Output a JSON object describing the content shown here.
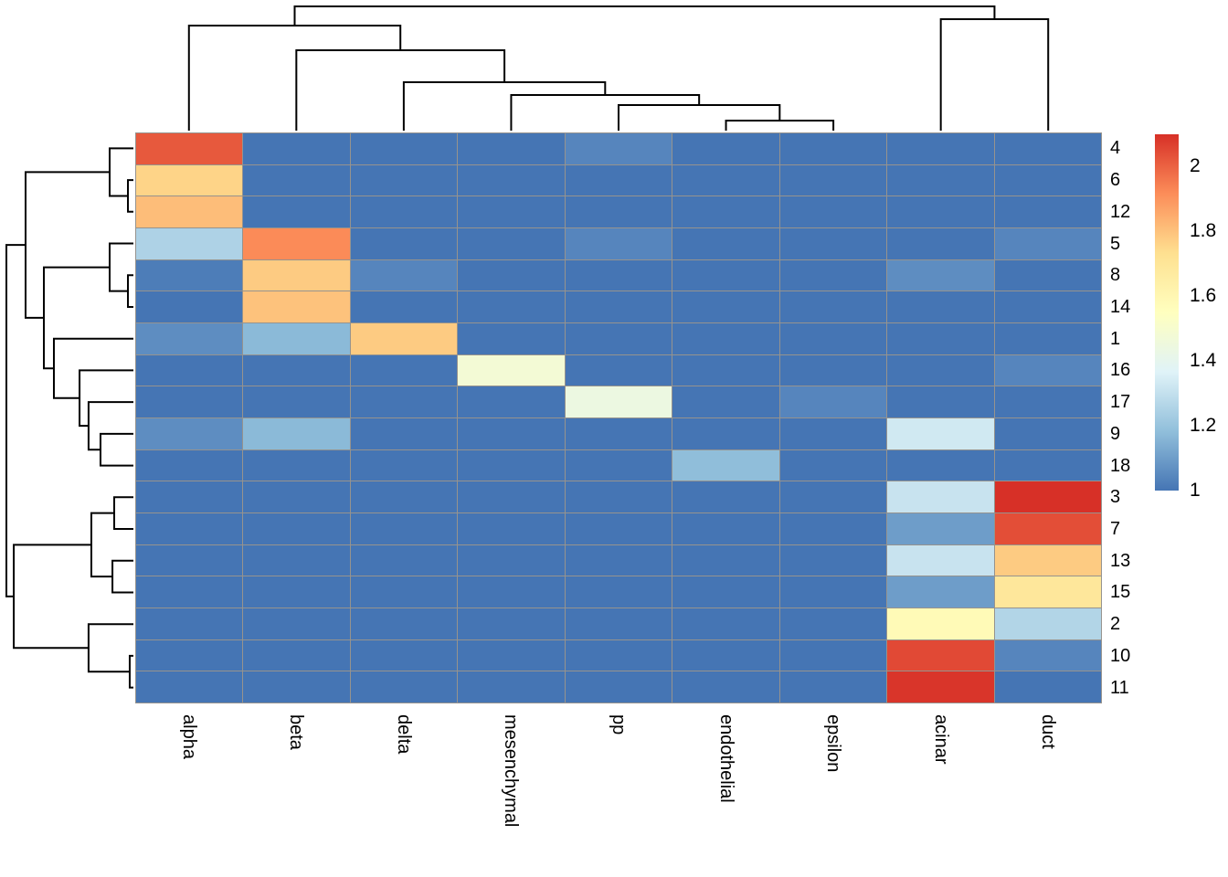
{
  "chart_data": {
    "type": "heatmap",
    "title": "",
    "columns": [
      "alpha",
      "beta",
      "delta",
      "mesenchymal",
      "pp",
      "endothelial",
      "epsilon",
      "acinar",
      "duct"
    ],
    "rows": [
      "4",
      "6",
      "12",
      "5",
      "8",
      "14",
      "1",
      "16",
      "17",
      "9",
      "18",
      "3",
      "7",
      "13",
      "15",
      "2",
      "10",
      "11"
    ],
    "values": [
      [
        2.02,
        1,
        1,
        1,
        1.04,
        1,
        1,
        1,
        1
      ],
      [
        1.76,
        1,
        1,
        1,
        1,
        1,
        1,
        1,
        1
      ],
      [
        1.81,
        1,
        1,
        1,
        1,
        1,
        1,
        1,
        1
      ],
      [
        1.25,
        1.92,
        1,
        1,
        1.04,
        1,
        1,
        1,
        1.04
      ],
      [
        1.02,
        1.78,
        1.04,
        1,
        1,
        1,
        1,
        1.06,
        1
      ],
      [
        1,
        1.8,
        1,
        1,
        1,
        1,
        1,
        1,
        1
      ],
      [
        1.06,
        1.17,
        1.78,
        1,
        1,
        1,
        1,
        1,
        1
      ],
      [
        1,
        1,
        1,
        1.48,
        1,
        1,
        1,
        1,
        1.04
      ],
      [
        1,
        1,
        1,
        1,
        1.44,
        1,
        1.04,
        1,
        1
      ],
      [
        1.06,
        1.17,
        1,
        1,
        1,
        1,
        1,
        1.33,
        1
      ],
      [
        1,
        1,
        1,
        1,
        1,
        1.18,
        1,
        1,
        1
      ],
      [
        1,
        1,
        1,
        1,
        1,
        1,
        1,
        1.31,
        2.1
      ],
      [
        1,
        1,
        1,
        1,
        1,
        1,
        1,
        1.1,
        2.04
      ],
      [
        1,
        1,
        1,
        1,
        1,
        1,
        1,
        1.31,
        1.78
      ],
      [
        1,
        1,
        1,
        1,
        1,
        1,
        1,
        1.1,
        1.69
      ],
      [
        1,
        1,
        1,
        1,
        1,
        1,
        1,
        1.58,
        1.26
      ],
      [
        1,
        1,
        1,
        1,
        1,
        1,
        1,
        2.05,
        1.04
      ],
      [
        1,
        1,
        1,
        1,
        1,
        1,
        1,
        2.09,
        1
      ]
    ],
    "value_range": [
      1.0,
      2.1
    ],
    "colormap": {
      "name": "RdYlBu-reversed",
      "anchors": [
        "#4575b4",
        "#91bfdb",
        "#e0f3f8",
        "#ffffbf",
        "#fee090",
        "#fc8d59",
        "#d73027"
      ]
    },
    "grid_color": "#96938e",
    "dendrogram_color": "#000000",
    "legend": {
      "tick_labels": [
        "2",
        "1.8",
        "1.6",
        "1.4",
        "1.2",
        "1"
      ],
      "tick_values": [
        2,
        1.8,
        1.6,
        1.4,
        1.2,
        1
      ]
    },
    "column_dendrogram": {
      "merges": [
        {
          "a": "endothelial",
          "b": "epsilon",
          "h": 0.081
        },
        {
          "a": "pp",
          "b": "#0",
          "h": 0.206
        },
        {
          "a": "mesenchymal",
          "b": "#1",
          "h": 0.287
        },
        {
          "a": "delta",
          "b": "#2",
          "h": 0.39
        },
        {
          "a": "beta",
          "b": "#3",
          "h": 0.647
        },
        {
          "a": "alpha",
          "b": "#4",
          "h": 0.846
        },
        {
          "a": "acinar",
          "b": "duct",
          "h": 0.897
        },
        {
          "a": "#5",
          "b": "#6",
          "h": 1.0
        }
      ]
    },
    "row_dendrogram": {
      "merges": [
        {
          "a": "6",
          "b": "12",
          "h": 0.043
        },
        {
          "a": "4",
          "b": "#0",
          "h": 0.187
        },
        {
          "a": "8",
          "b": "14",
          "h": 0.043
        },
        {
          "a": "5",
          "b": "#2",
          "h": 0.187
        },
        {
          "a": "9",
          "b": "18",
          "h": 0.259
        },
        {
          "a": "17",
          "b": "#4",
          "h": 0.353
        },
        {
          "a": "16",
          "b": "#5",
          "h": 0.424
        },
        {
          "a": "1",
          "b": "#6",
          "h": 0.626
        },
        {
          "a": "#3",
          "b": "#7",
          "h": 0.705
        },
        {
          "a": "#1",
          "b": "#8",
          "h": 0.849
        },
        {
          "a": "3",
          "b": "7",
          "h": 0.151
        },
        {
          "a": "13",
          "b": "15",
          "h": 0.165
        },
        {
          "a": "#10",
          "b": "#11",
          "h": 0.331
        },
        {
          "a": "10",
          "b": "11",
          "h": 0.029
        },
        {
          "a": "2",
          "b": "#13",
          "h": 0.353
        },
        {
          "a": "#12",
          "b": "#14",
          "h": 0.942
        },
        {
          "a": "#9",
          "b": "#15",
          "h": 1.0
        }
      ]
    }
  }
}
